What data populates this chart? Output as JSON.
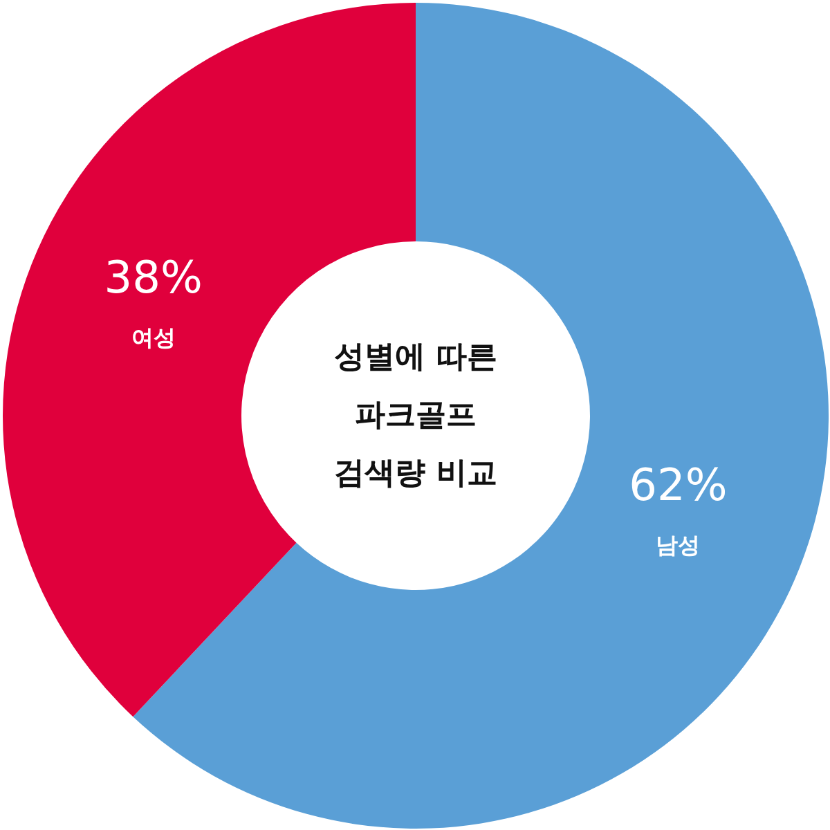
{
  "chart_data": {
    "type": "donut",
    "title": "성별에 따른\n파크골프\n검색량 비교",
    "categories": [
      "남성",
      "여성"
    ],
    "values": [
      62,
      38
    ],
    "colors": [
      "#5a9fd6",
      "#e0003c"
    ],
    "value_labels": [
      "62%",
      "38%"
    ]
  }
}
